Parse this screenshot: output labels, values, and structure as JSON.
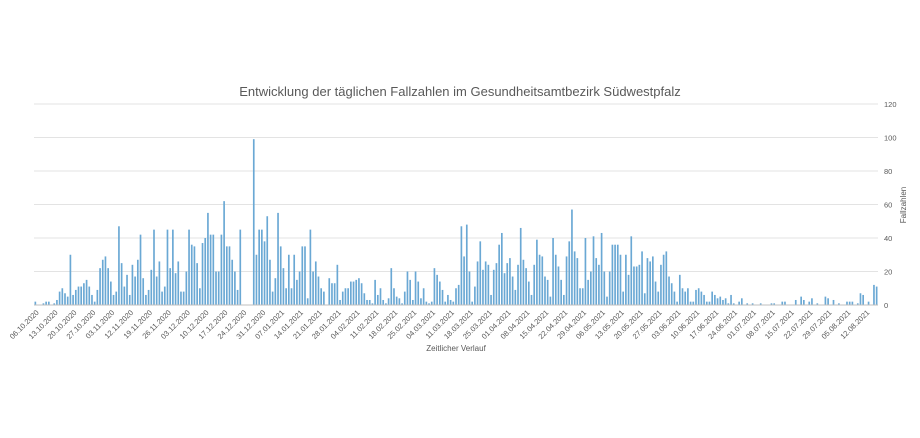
{
  "chart_data": {
    "type": "bar",
    "title": "Entwicklung der täglichen Fallzahlen im Gesundheitsamtbezirk Südwestpfalz",
    "xlabel": "Zeitlicher Verlauf",
    "ylabel": "Fallzahlen",
    "ylim": [
      0,
      120
    ],
    "yticks": [
      0,
      20,
      40,
      60,
      80,
      100,
      120
    ],
    "y_axis_side": "right",
    "grid": true,
    "legend": "none",
    "bar_color": "#6aa8d4",
    "start_date": "06.10.2020",
    "x_tick_labels": [
      "06.10.2020",
      "13.10.2020",
      "20.10.2020",
      "27.10.2020",
      "03.11.2020",
      "12.11.2020",
      "19.11.2020",
      "26.11.2020",
      "03.12.2020",
      "10.12.2020",
      "17.12.2020",
      "24.12.2020",
      "31.12.2020",
      "07.01.2021",
      "14.01.2021",
      "21.01.2021",
      "28.01.2021",
      "04.02.2021",
      "11.02.2021",
      "18.02.2021",
      "25.02.2021",
      "04.03.2021",
      "11.03.2021",
      "18.03.2021",
      "25.03.2021",
      "01.04.2021",
      "08.04.2021",
      "15.04.2021",
      "22.04.2021",
      "29.04.2021",
      "06.05.2021",
      "13.05.2021",
      "20.05.2021",
      "27.05.2021",
      "03.06.2021",
      "10.06.2021",
      "17.06.2021",
      "24.06.2021",
      "01.07.2021",
      "08.07.2021",
      "15.07.2021",
      "22.07.2021",
      "29.07.2021",
      "05.08.2021",
      "12.08.2021"
    ],
    "values": [
      2,
      0,
      0,
      1,
      2,
      2,
      0,
      1,
      3,
      8,
      10,
      7,
      5,
      30,
      6,
      9,
      11,
      11,
      13,
      15,
      11,
      6,
      2,
      9,
      22,
      27,
      29,
      22,
      14,
      6,
      8,
      47,
      25,
      11,
      18,
      6,
      24,
      17,
      27,
      42,
      16,
      6,
      9,
      21,
      45,
      17,
      26,
      8,
      11,
      45,
      22,
      45,
      19,
      26,
      8,
      8,
      20,
      45,
      36,
      35,
      25,
      10,
      37,
      40,
      55,
      42,
      42,
      20,
      20,
      42,
      62,
      35,
      35,
      27,
      20,
      9,
      45,
      0,
      0,
      0,
      0,
      99,
      30,
      45,
      45,
      38,
      53,
      27,
      8,
      16,
      55,
      35,
      22,
      10,
      30,
      10,
      30,
      15,
      20,
      35,
      35,
      4,
      45,
      20,
      26,
      17,
      10,
      8,
      0,
      16,
      13,
      13,
      24,
      3,
      8,
      10,
      10,
      14,
      14,
      15,
      16,
      13,
      7,
      3,
      3,
      1,
      15,
      6,
      10,
      3,
      1,
      4,
      22,
      10,
      5,
      4,
      1,
      8,
      20,
      15,
      3,
      20,
      14,
      4,
      10,
      2,
      1,
      2,
      22,
      18,
      14,
      9,
      2,
      6,
      3,
      2,
      10,
      12,
      47,
      29,
      48,
      20,
      2,
      11,
      26,
      38,
      21,
      26,
      24,
      6,
      21,
      25,
      36,
      43,
      19,
      25,
      28,
      17,
      9,
      24,
      46,
      27,
      22,
      14,
      6,
      24,
      39,
      30,
      29,
      17,
      15,
      5,
      40,
      30,
      23,
      15,
      6,
      29,
      38,
      57,
      32,
      28,
      10,
      10,
      40,
      15,
      20,
      41,
      28,
      24,
      43,
      20,
      5,
      20,
      36,
      36,
      36,
      30,
      8,
      30,
      18,
      41,
      23,
      23,
      24,
      32,
      7,
      28,
      26,
      29,
      14,
      8,
      24,
      30,
      32,
      17,
      13,
      8,
      2,
      18,
      10,
      8,
      10,
      2,
      2,
      9,
      10,
      8,
      6,
      2,
      2,
      8,
      6,
      4,
      5,
      3,
      4,
      1,
      6,
      1,
      0,
      2,
      4,
      0,
      1,
      0,
      1,
      0,
      0,
      1,
      0,
      0,
      0,
      1,
      1,
      0,
      0,
      2,
      2,
      0,
      0,
      0,
      3,
      0,
      5,
      3,
      0,
      2,
      4,
      0,
      1,
      0,
      0,
      5,
      4,
      0,
      3,
      0,
      1,
      0,
      0,
      2,
      2,
      2,
      0,
      1,
      7,
      6,
      0,
      2,
      0,
      12,
      11
    ]
  }
}
